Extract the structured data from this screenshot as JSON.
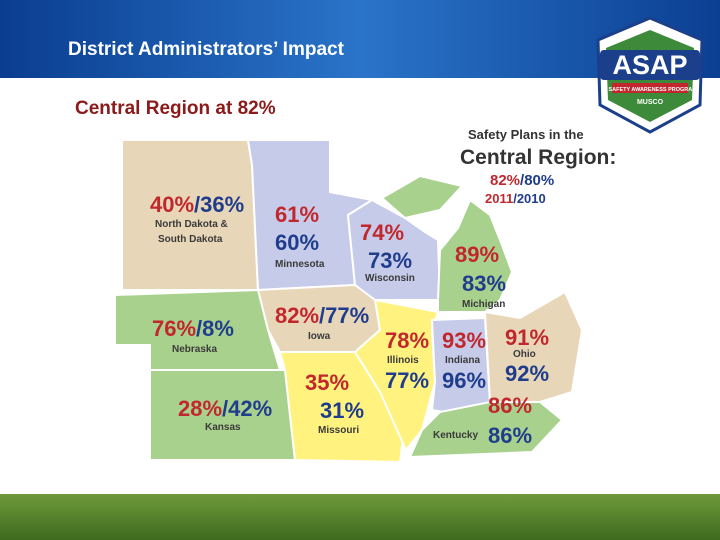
{
  "header": {
    "title": "District Administrators’ Impact",
    "subtitle": "Central Region at 82%"
  },
  "logo": {
    "text": "ASAP",
    "tagline": "A SAFETY AWARENESS PROGRAM",
    "sponsor": "MUSCO"
  },
  "legend": {
    "line1": "Safety Plans in the",
    "line2": "Central Region:",
    "y2011": "82%",
    "separator": "/",
    "y2010": "80%",
    "year2011": "2011",
    "year_separator": "/",
    "year2010": "2010"
  },
  "states": [
    {
      "name": [
        "North Dakota &",
        "South Dakota"
      ],
      "y2011": "40%",
      "separator": "/",
      "y2010": "36%",
      "color": "#e8d6b8"
    },
    {
      "name": [
        "Minnesota"
      ],
      "y2011": "61%",
      "y2010": "60%",
      "color": "#c6cbe9"
    },
    {
      "name": [
        "Wisconsin"
      ],
      "y2011": "74%",
      "y2010": "73%",
      "color": "#c6cbe9"
    },
    {
      "name": [
        "Michigan"
      ],
      "y2011": "89%",
      "y2010": "83%",
      "color": "#a9d18e"
    },
    {
      "name": [
        "Iowa"
      ],
      "y2011": "82%",
      "separator": "/",
      "y2010": "77%",
      "color": "#e8d6b8"
    },
    {
      "name": [
        "Nebraska"
      ],
      "y2011": "76%",
      "separator": "/",
      "y2010": "8%",
      "color": "#a9d18e"
    },
    {
      "name": [
        "Illinois"
      ],
      "y2011": "78%",
      "y2010": "77%",
      "color": "#a9d18e"
    },
    {
      "name": [
        "Indiana"
      ],
      "y2011": "93%",
      "y2010": "96%",
      "color": "#fff27e"
    },
    {
      "name": [
        "Ohio"
      ],
      "y2011": "91%",
      "y2010": "92%",
      "color": "#fff27e"
    },
    {
      "name": [
        "Kansas"
      ],
      "y2011": "28%",
      "separator": "/",
      "y2010": "42%",
      "color": "#c6cbe9"
    },
    {
      "name": [
        "Missouri"
      ],
      "y2011": "35%",
      "y2010": "31%",
      "color": "#e8d6b8"
    },
    {
      "name": [
        "Kentucky"
      ],
      "y2011": "86%",
      "y2010": "86%",
      "color": "#a9d18e"
    }
  ],
  "colors": {
    "y2011": "#c1272d",
    "y2010": "#1f3d8c",
    "name": "#3a3a3a"
  }
}
